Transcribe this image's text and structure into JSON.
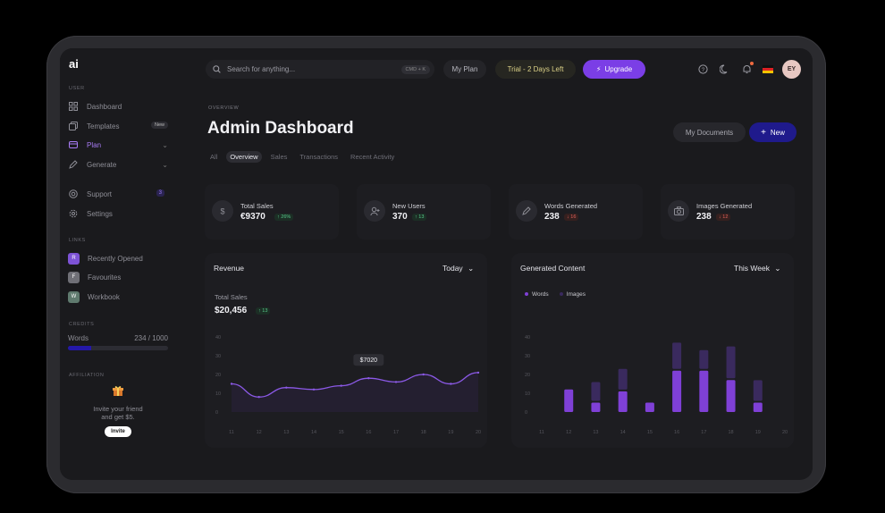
{
  "app": {
    "logo": "ai"
  },
  "sidebar": {
    "user_label": "USER",
    "items": [
      {
        "label": "Dashboard",
        "icon": "grid-icon"
      },
      {
        "label": "Templates",
        "icon": "copy-icon",
        "badge": "New"
      },
      {
        "label": "Plan",
        "icon": "plan-icon"
      },
      {
        "label": "Generate",
        "icon": "pen-icon"
      },
      {
        "label": "Support",
        "icon": "globe-icon",
        "badge": "3"
      },
      {
        "label": "Settings",
        "icon": "gear-icon"
      }
    ],
    "links_label": "LINKS",
    "links": [
      {
        "letter": "R",
        "label": "Recently Opened",
        "color": "#7d53d6"
      },
      {
        "letter": "F",
        "label": "Favourites",
        "color": "#6f6f76"
      },
      {
        "letter": "W",
        "label": "Workbook",
        "color": "#5f7a6e"
      }
    ],
    "credits_label": "CREDITS",
    "credits": {
      "label": "Words",
      "value": "234 / 1000",
      "fraction": 0.234
    },
    "affiliation_label": "AFFILIATION",
    "affiliation": {
      "text_line1": "Invite your friend",
      "text_line2": "and get $5.",
      "button": "Invite"
    }
  },
  "topbar": {
    "search_placeholder": "Search for anything...",
    "shortcut": "CMD + K",
    "my_plan": "My Plan",
    "trial": "Trial - 2 Days Left",
    "upgrade": "Upgrade",
    "avatar": "EY"
  },
  "header": {
    "overline": "OVERVIEW",
    "title": "Admin Dashboard",
    "tabs": [
      "All",
      "Overview",
      "Sales",
      "Transactions",
      "Recent Activity"
    ],
    "active_tab": "Overview",
    "my_documents": "My Documents",
    "new_button": "New"
  },
  "stats": [
    {
      "label": "Total Sales",
      "value": "€9370",
      "change": "26%",
      "dir": "up",
      "icon": "dollar-icon"
    },
    {
      "label": "New Users",
      "value": "370",
      "change": "13",
      "dir": "up",
      "icon": "user-add-icon"
    },
    {
      "label": "Words Generated",
      "value": "238",
      "change": "16",
      "dir": "down",
      "icon": "edit-icon"
    },
    {
      "label": "Images Generated",
      "value": "238",
      "change": "12",
      "dir": "down",
      "icon": "camera-icon"
    }
  ],
  "revenue": {
    "title": "Revenue",
    "period": "Today",
    "subtitle": "Total Sales",
    "total": "$20,456",
    "change": "13",
    "tooltip": "$7020"
  },
  "generated": {
    "title": "Generated Content",
    "period": "This Week",
    "legend": [
      "Words",
      "Images"
    ]
  },
  "colors": {
    "accent": "#7b3ee6",
    "primary_button": "#1f1a8c",
    "words_bar": "#7f40d6",
    "images_bar": "#3a2a5e",
    "line": "#8b59e6"
  },
  "chart_data": [
    {
      "type": "area",
      "title": "Revenue",
      "x": [
        "11",
        "12",
        "13",
        "14",
        "15",
        "16",
        "17",
        "18",
        "19",
        "20"
      ],
      "y_ticks": [
        "0",
        "10",
        "20",
        "30",
        "40"
      ],
      "ylim": [
        0,
        40
      ],
      "values": [
        15,
        8,
        13,
        12,
        14,
        18,
        16,
        20,
        15,
        21
      ],
      "annotation": "$7020"
    },
    {
      "type": "bar",
      "title": "Generated Content",
      "categories": [
        "11",
        "12",
        "13",
        "14",
        "15",
        "16",
        "17",
        "18",
        "19",
        "20"
      ],
      "y_ticks": [
        "0",
        "10",
        "20",
        "30",
        "40"
      ],
      "ylim": [
        0,
        40
      ],
      "series": [
        {
          "name": "Words",
          "values": [
            0,
            12,
            5,
            11,
            5,
            22,
            22,
            17,
            5,
            0
          ]
        },
        {
          "name": "Images",
          "values": [
            0,
            0,
            10,
            11,
            0,
            14,
            10,
            17,
            11,
            0
          ]
        }
      ]
    }
  ]
}
